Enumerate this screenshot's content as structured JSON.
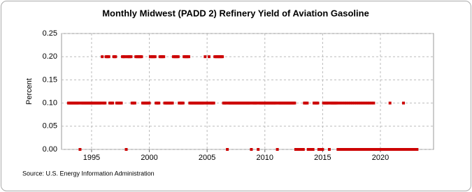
{
  "chart_data": {
    "type": "scatter",
    "title": "Monthly Midwest (PADD 2) Refinery Yield of Aviation Gasoline",
    "y_label": "Percent",
    "source": "Source: U.S. Energy Information Administration",
    "xlim": [
      1992.4,
      2024.6
    ],
    "xticks": [
      1995,
      2000,
      2005,
      2010,
      2015,
      2020
    ],
    "ylim": [
      0,
      0.25
    ],
    "yticks": [
      {
        "value": 0,
        "label": "0.00"
      },
      0.05,
      {
        "value": 0.1,
        "label": "0.10"
      },
      0.15,
      {
        "value": 0.2,
        "label": "0.20"
      },
      0.25
    ],
    "grid": true,
    "series": [
      {
        "color": "#cc0000",
        "x": [
          1993,
          1993.08,
          1993.17,
          1993.25,
          1993.33,
          1993.42,
          1993.5,
          1993.58,
          1993.67,
          1993.75,
          1993.83,
          1993.92,
          1994,
          1994.08,
          1994.17,
          1994.25,
          1994.33,
          1994.42,
          1994.5,
          1994.58,
          1994.67,
          1994.75,
          1994.83,
          1994.92,
          1995,
          1995.08,
          1995.17,
          1995.25,
          1995.33,
          1995.42,
          1995.5,
          1995.58,
          1995.67,
          1995.75,
          1995.83,
          1995.92,
          1996,
          1996.08,
          1996.17,
          1996.25,
          1996.33,
          1996.42,
          1996.5,
          1996.58,
          1996.67,
          1996.75,
          1996.83,
          1996.92,
          1997,
          1997.08,
          1997.17,
          1997.25,
          1997.33,
          1997.42,
          1997.5,
          1997.58,
          1997.67,
          1997.75,
          1997.83,
          1997.92,
          1998,
          1998.08,
          1998.17,
          1998.25,
          1998.33,
          1998.42,
          1998.5,
          1998.58,
          1998.67,
          1998.75,
          1998.83,
          1998.92,
          1999,
          1999.08,
          1999.17,
          1999.25,
          1999.33,
          1999.42,
          1999.5,
          1999.58,
          1999.67,
          1999.75,
          1999.83,
          1999.92,
          2000,
          2000.08,
          2000.17,
          2000.25,
          2000.33,
          2000.42,
          2000.5,
          2000.58,
          2000.67,
          2000.75,
          2000.83,
          2000.92,
          2001,
          2001.08,
          2001.17,
          2001.25,
          2001.33,
          2001.42,
          2001.5,
          2001.58,
          2001.67,
          2001.75,
          2001.83,
          2001.92,
          2002,
          2002.08,
          2002.17,
          2002.25,
          2002.33,
          2002.42,
          2002.5,
          2002.58,
          2002.67,
          2002.75,
          2002.83,
          2002.92,
          2003,
          2003.08,
          2003.17,
          2003.25,
          2003.33,
          2003.42,
          2003.5,
          2003.58,
          2003.67,
          2003.75,
          2003.83,
          2003.92,
          2004,
          2004.08,
          2004.17,
          2004.25,
          2004.33,
          2004.42,
          2004.5,
          2004.58,
          2004.67,
          2004.75,
          2004.83,
          2004.92,
          2005,
          2005.08,
          2005.17,
          2005.25,
          2005.33,
          2005.42,
          2005.5,
          2005.58,
          2005.67,
          2005.75,
          2005.83,
          2005.92,
          2006,
          2006.08,
          2006.17,
          2006.25,
          2006.33,
          2006.42,
          2006.5,
          2006.58,
          2006.67,
          2006.75,
          2006.83,
          2006.92,
          2007,
          2007.08,
          2007.17,
          2007.25,
          2007.33,
          2007.42,
          2007.5,
          2007.58,
          2007.67,
          2007.75,
          2007.83,
          2007.92,
          2008,
          2008.08,
          2008.17,
          2008.25,
          2008.33,
          2008.42,
          2008.5,
          2008.58,
          2008.67,
          2008.75,
          2008.83,
          2008.92,
          2009,
          2009.08,
          2009.17,
          2009.25,
          2009.33,
          2009.42,
          2009.5,
          2009.58,
          2009.67,
          2009.75,
          2009.83,
          2009.92,
          2010,
          2010.08,
          2010.17,
          2010.25,
          2010.33,
          2010.42,
          2010.5,
          2010.58,
          2010.67,
          2010.75,
          2010.83,
          2010.92,
          2011,
          2011.08,
          2011.17,
          2011.25,
          2011.33,
          2011.42,
          2011.5,
          2011.58,
          2011.67,
          2011.75,
          2011.83,
          2011.92,
          2012,
          2012.08,
          2012.17,
          2012.25,
          2012.33,
          2012.42,
          2012.5,
          2012.58,
          2012.67,
          2012.75,
          2012.83,
          2012.92,
          2013,
          2013.08,
          2013.17,
          2013.25,
          2013.33,
          2013.42,
          2013.5,
          2013.58,
          2013.67,
          2013.75,
          2013.83,
          2013.92,
          2014,
          2014.08,
          2014.17,
          2014.25,
          2014.33,
          2014.42,
          2014.5,
          2014.58,
          2014.67,
          2014.75,
          2014.83,
          2014.92,
          2015,
          2015.08,
          2015.17,
          2015.25,
          2015.33,
          2015.42,
          2015.5,
          2015.58,
          2015.67,
          2015.75,
          2015.83,
          2015.92,
          2016,
          2016.08,
          2016.17,
          2016.25,
          2016.33,
          2016.42,
          2016.5,
          2016.58,
          2016.67,
          2016.75,
          2016.83,
          2016.92,
          2017,
          2017.08,
          2017.17,
          2017.25,
          2017.33,
          2017.42,
          2017.5,
          2017.58,
          2017.67,
          2017.75,
          2017.83,
          2017.92,
          2018,
          2018.08,
          2018.17,
          2018.25,
          2018.33,
          2018.42,
          2018.5,
          2018.58,
          2018.67,
          2018.75,
          2018.83,
          2018.92,
          2019,
          2019.08,
          2019.17,
          2019.25,
          2019.33,
          2019.42,
          2019.5,
          2019.58,
          2019.67,
          2019.75,
          2019.83,
          2019.92,
          2020,
          2020.08,
          2020.17,
          2020.25,
          2020.33,
          2020.42,
          2020.5,
          2020.58,
          2020.67,
          2020.75,
          2020.83,
          2020.92,
          2021,
          2021.08,
          2021.17,
          2021.25,
          2021.33,
          2021.42,
          2021.5,
          2021.58,
          2021.67,
          2021.75,
          2021.83,
          2021.92,
          2022,
          2022.08,
          2022.17,
          2022.25,
          2022.33,
          2022.42,
          2022.5,
          2022.58,
          2022.67,
          2022.75,
          2022.83,
          2022.92,
          2023,
          2023.08,
          2023.17
        ],
        "values": [
          0.1,
          0.1,
          0.1,
          0.1,
          0.1,
          0.1,
          0.1,
          0.1,
          0.1,
          0.1,
          0.1,
          0.1,
          0,
          0.1,
          0.1,
          0.1,
          0.1,
          0.1,
          0.1,
          0.1,
          0.1,
          0.1,
          0.1,
          0.1,
          0.1,
          0.1,
          0.1,
          0.1,
          0.1,
          0.1,
          0.1,
          0.1,
          0.1,
          0.1,
          0.1,
          0.2,
          0.1,
          0.1,
          0.1,
          0.2,
          0.2,
          0.2,
          0.2,
          0.1,
          0.1,
          0.1,
          0.1,
          0.2,
          0.2,
          0.2,
          0.1,
          0.1,
          0.1,
          0.1,
          0.1,
          0.1,
          0.2,
          0.2,
          0.2,
          0.2,
          0,
          0.2,
          0.2,
          0.2,
          0.2,
          0.2,
          0.1,
          0.1,
          0.1,
          0.1,
          0.2,
          0.2,
          0.2,
          0.2,
          0.2,
          0.2,
          0.2,
          0.1,
          0.1,
          0.1,
          0.1,
          0.1,
          0.1,
          0.1,
          0.1,
          0.2,
          0.2,
          0.2,
          0.2,
          0.2,
          0.2,
          0.1,
          0.1,
          0.1,
          0.1,
          0.2,
          0.2,
          0.2,
          0.2,
          0.2,
          0.1,
          0.1,
          0.1,
          0.1,
          0.1,
          0.1,
          0.1,
          0.1,
          0.1,
          0.2,
          0.2,
          0.2,
          0.2,
          0.2,
          0.2,
          0.1,
          0.1,
          0.1,
          0.1,
          0.1,
          0.2,
          0.2,
          0.2,
          0.2,
          0.2,
          0.2,
          0.1,
          0.1,
          0.1,
          0.1,
          0.1,
          0.1,
          0.1,
          0.1,
          0.1,
          0.1,
          0.1,
          0.1,
          0.1,
          0.1,
          0.1,
          0.1,
          0.2,
          0.1,
          0.1,
          0.1,
          0.2,
          0.1,
          0.1,
          0.1,
          0.1,
          0.1,
          0.2,
          0.2,
          0.2,
          0.2,
          0.2,
          0.2,
          0.2,
          0.2,
          0.2,
          0.1,
          0.1,
          0.1,
          0.1,
          0,
          0.1,
          0.1,
          0.1,
          0.1,
          0.1,
          0.1,
          0.1,
          0.1,
          0.1,
          0.1,
          0.1,
          0.1,
          0.1,
          0.1,
          0.1,
          0.1,
          0.1,
          0.1,
          0.1,
          0.1,
          0.1,
          0.1,
          0.1,
          0.1,
          0,
          0.1,
          0.1,
          0.1,
          0.1,
          0.1,
          0.1,
          0,
          0.1,
          0.1,
          0.1,
          0.1,
          0.1,
          0.1,
          0.1,
          0.1,
          0.1,
          0.1,
          0.1,
          0.1,
          0.1,
          0.1,
          0.1,
          0.1,
          0.1,
          0.1,
          0.1,
          0,
          0.1,
          0.1,
          0.1,
          0.1,
          0.1,
          0.1,
          0.1,
          0.1,
          0.1,
          0.1,
          0.1,
          0.1,
          0.1,
          0.1,
          0.1,
          0.1,
          0.1,
          0.1,
          0,
          0,
          0,
          0,
          0,
          0,
          0,
          0,
          0,
          0.1,
          0.1,
          0.1,
          0.1,
          0,
          0,
          0,
          0,
          0,
          0,
          0.1,
          0.1,
          0.1,
          0.1,
          0.1,
          0,
          0,
          0,
          0,
          0,
          0.1,
          0.1,
          0.1,
          0.1,
          0.1,
          0.1,
          0,
          0.1,
          0.1,
          0.1,
          0.1,
          0.1,
          0.1,
          0.1,
          0.1,
          0,
          0.1,
          0,
          0.1,
          0,
          0.1,
          0,
          0.1,
          0,
          0.1,
          0,
          0.1,
          0,
          0.1,
          0,
          0.1,
          0,
          0.1,
          0,
          0.1,
          0,
          0.1,
          0,
          0.1,
          0,
          0.1,
          0,
          0.1,
          0,
          0.1,
          0,
          0.1,
          0,
          0.1,
          0,
          0.1,
          0,
          0.1,
          0,
          0,
          0,
          0,
          0,
          0,
          0,
          0,
          0,
          0,
          0,
          0,
          0,
          0,
          0,
          0,
          0.1,
          0,
          0,
          0,
          0,
          0,
          0,
          0,
          0,
          0,
          0,
          0,
          0,
          0,
          0.1,
          0,
          0,
          0,
          0,
          0,
          0,
          0,
          0,
          0,
          0,
          0,
          0,
          0,
          0
        ]
      }
    ]
  }
}
